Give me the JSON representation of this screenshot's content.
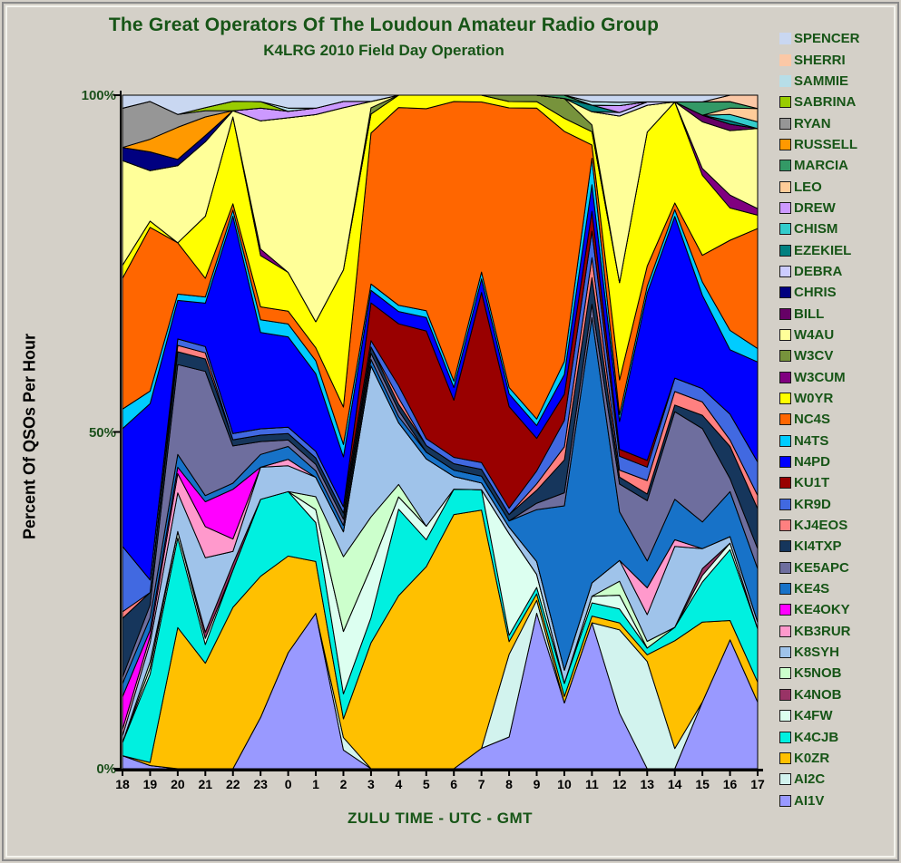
{
  "title": "The Great Operators Of The Loudoun Amateur Radio Group",
  "subtitle": "K4LRG 2010 Field Day Operation",
  "axes": {
    "ylabel": "Percent Of QSOs Per Hour",
    "xlabel": "ZULU TIME  -  UTC  -  GMT",
    "yticks": [
      "100%",
      "50%",
      "0%"
    ]
  },
  "colors": {
    "background": "#D4D0C8",
    "title_text": "#175517",
    "axis_line": "#000000",
    "area_outline": "#000000"
  },
  "chart_data": {
    "type": "area",
    "stacking": "percent",
    "title": "The Great Operators Of The Loudoun Amateur Radio Group",
    "subtitle": "K4LRG 2010 Field Day Operation",
    "xlabel": "ZULU TIME  -  UTC  -  GMT",
    "ylabel": "Percent Of QSOs Per Hour",
    "ylim": [
      0,
      100
    ],
    "grid": false,
    "legend_position": "right",
    "legend_order": "reverse-of-series (SPENCER top, AI1V bottom)",
    "categories": [
      "18",
      "19",
      "20",
      "21",
      "22",
      "23",
      "0",
      "1",
      "2",
      "3",
      "4",
      "5",
      "6",
      "7",
      "8",
      "9",
      "10",
      "11",
      "12",
      "13",
      "14",
      "15",
      "16",
      "17"
    ],
    "series": [
      {
        "name": "AI1V",
        "color": "#9999FF",
        "swatch_border": true,
        "values": [
          2,
          0.5,
          0,
          0,
          0,
          8,
          18,
          24,
          3,
          0,
          0,
          0,
          0,
          3,
          5,
          24,
          10,
          22,
          8,
          0,
          0,
          10,
          20,
          10
        ]
      },
      {
        "name": "AI2C",
        "color": "#D2F3EE",
        "swatch_border": true,
        "values": [
          0,
          0,
          0,
          0,
          0,
          0,
          0,
          0,
          2,
          0,
          0,
          0,
          0,
          0,
          13,
          2,
          0,
          0,
          12,
          16,
          3,
          0,
          0,
          0
        ]
      },
      {
        "name": "K0ZR",
        "color": "#FFC000",
        "swatch_border": true,
        "values": [
          0,
          0.5,
          22,
          17,
          26,
          22,
          15,
          8,
          3,
          20,
          28,
          30,
          40,
          35,
          2,
          1,
          1,
          1,
          1,
          1,
          16,
          12,
          3,
          3
        ]
      },
      {
        "name": "K4CJB",
        "color": "#00F0E0",
        "swatch_border": true,
        "values": [
          2,
          14,
          14,
          3,
          6,
          12,
          10,
          6,
          4,
          4,
          14,
          4,
          4,
          3,
          1,
          1,
          2,
          2,
          2,
          1,
          2,
          6,
          11,
          8
        ]
      },
      {
        "name": "K4FW",
        "color": "#DCFFF0",
        "swatch_border": true,
        "values": [
          0,
          1,
          1,
          1,
          0,
          0,
          0,
          2,
          10,
          8,
          2,
          2,
          0,
          0,
          16,
          2,
          0,
          1,
          2,
          0,
          0,
          1,
          1,
          0
        ]
      },
      {
        "name": "K4NOB",
        "color": "#993366",
        "swatch_border": true,
        "values": [
          0,
          0,
          0,
          1,
          1,
          0,
          0,
          0,
          0,
          0,
          0,
          0,
          0,
          0,
          0,
          0,
          0,
          0,
          0,
          0,
          0,
          1,
          0,
          0
        ]
      },
      {
        "name": "K5NOB",
        "color": "#CCFFCC",
        "swatch_border": true,
        "values": [
          0,
          1,
          0,
          0,
          0,
          0,
          0,
          2,
          12,
          8,
          2,
          0,
          0,
          0,
          0,
          0,
          0,
          0,
          2,
          1,
          0,
          0,
          0,
          0
        ]
      },
      {
        "name": "K8SYH",
        "color": "#9FC3EA",
        "swatch_border": true,
        "values": [
          1,
          3,
          6,
          12,
          2,
          5,
          4,
          3,
          4,
          24,
          10,
          10,
          2,
          1,
          1,
          2,
          2,
          2,
          3,
          4,
          12,
          3,
          1,
          1
        ]
      },
      {
        "name": "KB3RUR",
        "color": "#FF99CC",
        "swatch_border": true,
        "values": [
          1,
          1,
          3,
          5,
          2,
          0,
          1,
          0,
          0,
          0,
          0,
          0,
          0,
          0,
          0,
          0,
          0,
          0,
          0,
          4,
          1,
          0,
          0,
          0
        ]
      },
      {
        "name": "KE4OKY",
        "color": "#FF00FF",
        "swatch_border": true,
        "values": [
          5,
          1,
          1,
          4,
          8,
          0,
          0,
          0,
          0,
          0,
          0,
          0,
          0,
          0,
          0,
          0,
          0,
          0,
          0,
          0,
          0,
          0,
          0,
          0
        ]
      },
      {
        "name": "KE4S",
        "color": "#1772C8",
        "swatch_border": true,
        "values": [
          2,
          2,
          2,
          1,
          1,
          2,
          2,
          1,
          1,
          1,
          1,
          1,
          1,
          1,
          1,
          8,
          25,
          40,
          7,
          4,
          6,
          4,
          7,
          8
        ]
      },
      {
        "name": "KE5APC",
        "color": "#6E6E9E",
        "swatch_border": true,
        "values": [
          1,
          2,
          14,
          20,
          6,
          2,
          1,
          1,
          1,
          1,
          1,
          0,
          0,
          0,
          0,
          1,
          2,
          2,
          4,
          9,
          13,
          14,
          2,
          3
        ]
      },
      {
        "name": "KI4TXP",
        "color": "#16365C",
        "swatch_border": true,
        "values": [
          9,
          2,
          2,
          2,
          1,
          1,
          1,
          1,
          1,
          1,
          1,
          1,
          1,
          1,
          1,
          2,
          5,
          4,
          1,
          1,
          1,
          2,
          5,
          6
        ]
      },
      {
        "name": "KJ4EOS",
        "color": "#FF8080",
        "swatch_border": true,
        "values": [
          1,
          0,
          1,
          1,
          0,
          0,
          0,
          0,
          0,
          0,
          1,
          0,
          0,
          0,
          0,
          1,
          2,
          3,
          1,
          2,
          2,
          2,
          1,
          2
        ]
      },
      {
        "name": "KR9D",
        "color": "#4169E1",
        "swatch_border": true,
        "values": [
          10,
          2,
          1,
          1,
          1,
          1,
          1,
          1,
          1,
          1,
          2,
          1,
          1,
          1,
          1,
          2,
          4,
          4,
          2,
          2,
          2,
          2,
          4,
          5
        ]
      },
      {
        "name": "KU1T",
        "color": "#990000",
        "swatch_border": true,
        "values": [
          0,
          0,
          0,
          0,
          0,
          0,
          0,
          0,
          0,
          6,
          10,
          16,
          9,
          25,
          16,
          5,
          4,
          3,
          1,
          1,
          0,
          0,
          0,
          0
        ]
      },
      {
        "name": "N4PD",
        "color": "#0000FF",
        "swatch_border": true,
        "values": [
          18,
          28,
          6,
          7,
          35,
          15,
          14,
          12,
          8,
          2,
          2,
          2,
          2,
          2,
          2,
          2,
          3,
          4,
          4,
          25,
          24,
          14,
          10,
          15
        ]
      },
      {
        "name": "N4TS",
        "color": "#00CCFF",
        "swatch_border": true,
        "values": [
          3,
          2,
          1,
          1,
          1,
          2,
          2,
          2,
          2,
          1,
          1,
          1,
          1,
          1,
          1,
          1,
          2,
          4,
          1,
          1,
          1,
          2,
          3,
          2
        ]
      },
      {
        "name": "NC4S",
        "color": "#FF6600",
        "swatch_border": true,
        "values": [
          20,
          26,
          8,
          3,
          1,
          2,
          2,
          2,
          6,
          24,
          32,
          30,
          44,
          25,
          44,
          48,
          35,
          2,
          5,
          3,
          1,
          4,
          14,
          18
        ]
      },
      {
        "name": "W0YR",
        "color": "#FFFF00",
        "swatch_border": true,
        "values": [
          2,
          1,
          0,
          10,
          14,
          8,
          6,
          4,
          22,
          3,
          2,
          2,
          1,
          1,
          1,
          1,
          2,
          2,
          14,
          20,
          15,
          12,
          5,
          2
        ]
      },
      {
        "name": "W3CUM",
        "color": "#800080",
        "swatch_border": true,
        "values": [
          0,
          0,
          0,
          0,
          0,
          1,
          0,
          0,
          0,
          0,
          0,
          0,
          0,
          0,
          0,
          0,
          0,
          0,
          0,
          0,
          0,
          1,
          2,
          1
        ]
      },
      {
        "name": "W3CV",
        "color": "#77933C",
        "swatch_border": true,
        "values": [
          0,
          0,
          0,
          0,
          0,
          0,
          0,
          0,
          0,
          1,
          0,
          0,
          0,
          0,
          1,
          1,
          3,
          1,
          0,
          0,
          0,
          0,
          0,
          0
        ]
      },
      {
        "name": "W4AU",
        "color": "#FFFF99",
        "swatch_border": true,
        "values": [
          16,
          8,
          12,
          12,
          1,
          20,
          24,
          32,
          26,
          1,
          0,
          0,
          0,
          0,
          0,
          0,
          0,
          2,
          24,
          4,
          0,
          7,
          10,
          12
        ]
      },
      {
        "name": "BILL",
        "color": "#660066",
        "swatch_border": true,
        "values": [
          0,
          0,
          0,
          0,
          0,
          0,
          0,
          0,
          0,
          0,
          0,
          0,
          0,
          0,
          0,
          0,
          0,
          0,
          0,
          0,
          0,
          1,
          1,
          0
        ]
      },
      {
        "name": "CHRIS",
        "color": "#000080",
        "swatch_border": true,
        "values": [
          2,
          3,
          1,
          1,
          0,
          0,
          0,
          0,
          0,
          0,
          0,
          0,
          0,
          0,
          0,
          0,
          0,
          0,
          0,
          0,
          0,
          0,
          0,
          0
        ]
      },
      {
        "name": "DEBRA",
        "color": "#CCCCFF",
        "swatch_border": true,
        "values": [
          0,
          0,
          0,
          0,
          0,
          0,
          0,
          0,
          0,
          0,
          0,
          0,
          0,
          0,
          0,
          0,
          0,
          0,
          0.5,
          0.5,
          0,
          0,
          0,
          0
        ]
      },
      {
        "name": "EZEKIEL",
        "color": "#008080",
        "swatch_border": true,
        "values": [
          0,
          0,
          0,
          0,
          0,
          0,
          0,
          0,
          0,
          0,
          0,
          0,
          0,
          0,
          0,
          0,
          0,
          1,
          0,
          0,
          0,
          0,
          0.5,
          0
        ]
      },
      {
        "name": "CHISM",
        "color": "#33CCCC",
        "swatch_border": true,
        "values": [
          0,
          0,
          0,
          0,
          0,
          0,
          0,
          0,
          0,
          0,
          0,
          0,
          0,
          0,
          0,
          0,
          0,
          0,
          0,
          0,
          0,
          0,
          1,
          1
        ]
      },
      {
        "name": "DREW",
        "color": "#CC99FF",
        "swatch_border": true,
        "values": [
          0,
          0,
          0,
          0,
          0,
          2,
          1,
          1,
          1,
          0,
          0,
          0,
          0,
          0,
          0,
          0,
          0,
          0,
          1,
          0,
          0,
          0,
          0,
          0
        ]
      },
      {
        "name": "LEO",
        "color": "#FFCC99",
        "swatch_border": true,
        "values": [
          0,
          0,
          0,
          0,
          0,
          0,
          0,
          0,
          0,
          0,
          0,
          0,
          0,
          0,
          0,
          0,
          0,
          0,
          0,
          0,
          0,
          0,
          1,
          2
        ]
      },
      {
        "name": "MARCIA",
        "color": "#339966",
        "swatch_border": true,
        "values": [
          0,
          0,
          0,
          0,
          0,
          0,
          0,
          0,
          0,
          0,
          0,
          0,
          0,
          0,
          0,
          0,
          0.5,
          0,
          0,
          0,
          0,
          2,
          1,
          0
        ]
      },
      {
        "name": "RUSSELL",
        "color": "#FF9900",
        "swatch_border": true,
        "values": [
          0,
          2,
          5,
          3,
          0,
          0,
          0,
          0,
          0,
          0,
          0,
          0,
          0,
          0,
          0,
          0,
          0,
          0,
          0,
          0,
          0,
          0,
          0,
          0
        ]
      },
      {
        "name": "RYAN",
        "color": "#969696",
        "swatch_border": true,
        "values": [
          6,
          6,
          2,
          1,
          0,
          0,
          0,
          0,
          0,
          0,
          0,
          0,
          0,
          0,
          0,
          0,
          0,
          0,
          0,
          0,
          0,
          0,
          0,
          0
        ]
      },
      {
        "name": "SABRINA",
        "color": "#99CC00",
        "swatch_border": true,
        "values": [
          0,
          0,
          0,
          0.5,
          1.5,
          1,
          0,
          0,
          0,
          0,
          0,
          0,
          0,
          0,
          0,
          0,
          0,
          0,
          0,
          0,
          0,
          0,
          0,
          0
        ]
      },
      {
        "name": "SAMMIE",
        "color": "#B7DEE8",
        "swatch_border": false,
        "values": [
          0,
          0,
          0,
          0,
          0,
          0,
          0.5,
          0,
          0,
          0,
          0,
          0,
          0,
          0,
          0,
          0,
          0,
          0.5,
          0.5,
          0,
          0,
          0,
          0,
          0
        ]
      },
      {
        "name": "SHERRI",
        "color": "#FBC8A6",
        "swatch_border": false,
        "values": [
          0,
          0,
          0,
          0,
          0,
          0,
          0,
          0,
          0,
          0,
          0,
          0,
          0,
          0,
          0,
          0,
          0,
          0,
          0,
          0,
          0,
          0,
          1,
          2
        ]
      },
      {
        "name": "SPENCER",
        "color": "#C9D7F1",
        "swatch_border": false,
        "values": [
          2,
          1,
          3,
          2,
          1,
          1,
          2,
          2,
          1,
          1,
          0,
          0,
          0,
          0,
          0,
          0,
          0,
          1,
          1,
          1,
          1,
          1,
          0,
          0
        ]
      }
    ]
  }
}
